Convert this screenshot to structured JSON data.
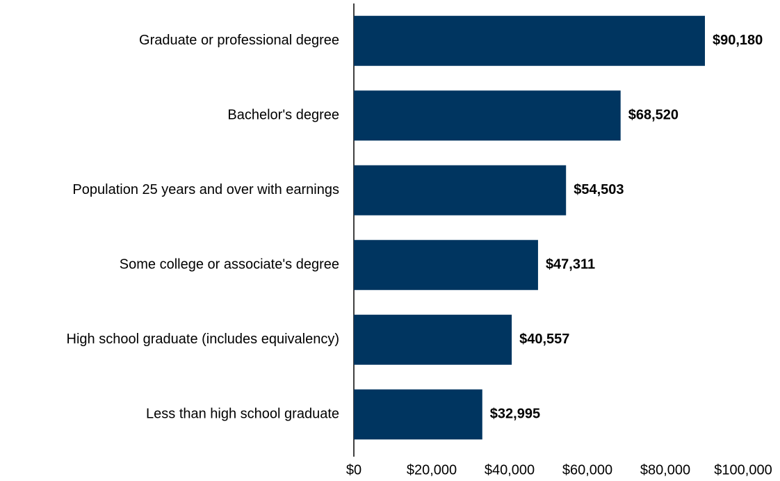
{
  "chart_data": {
    "type": "bar",
    "orientation": "horizontal",
    "categories": [
      "Graduate or professional degree",
      "Bachelor's degree",
      "Population 25 years and over with earnings",
      "Some college or associate's degree",
      "High school graduate (includes equivalency)",
      "Less than high school graduate"
    ],
    "values": [
      90180,
      68520,
      54503,
      47311,
      40557,
      32995
    ],
    "value_labels": [
      "$90,180",
      "$68,520",
      "$54,503",
      "$47,311",
      "$40,557",
      "$32,995"
    ],
    "color": "#003560",
    "xlim": [
      0,
      100000
    ],
    "xticks": [
      {
        "value": 0,
        "label": "$0"
      },
      {
        "value": 20000,
        "label": "$20,000"
      },
      {
        "value": 40000,
        "label": "$40,000"
      },
      {
        "value": 60000,
        "label": "$60,000"
      },
      {
        "value": 80000,
        "label": "$80,000"
      },
      {
        "value": 100000,
        "label": "$100,000"
      }
    ],
    "grid": false
  }
}
